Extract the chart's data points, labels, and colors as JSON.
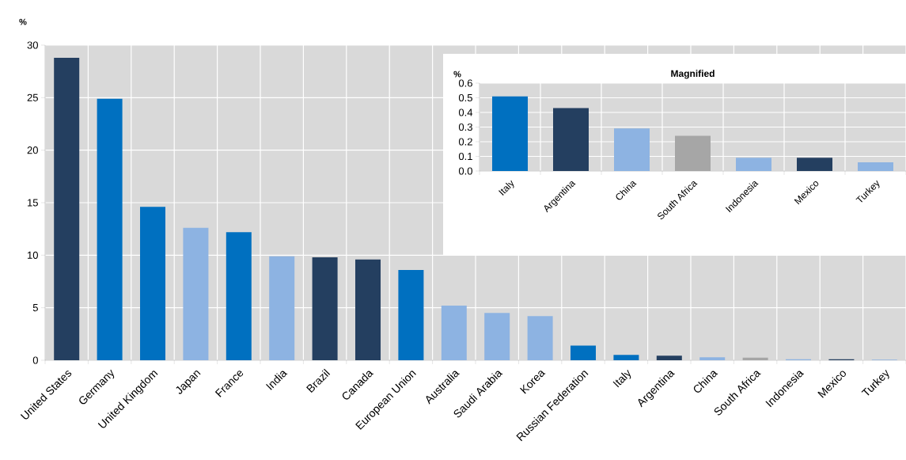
{
  "chart_data": [
    {
      "type": "bar",
      "ylabel": "%",
      "grid": true,
      "ylim": [
        0,
        30
      ],
      "yticks": [
        0,
        5,
        10,
        15,
        20,
        25,
        30
      ],
      "categories": [
        "United States",
        "Germany",
        "United Kingdom",
        "Japan",
        "France",
        "India",
        "Brazil",
        "Canada",
        "European Union",
        "Australia",
        "Saudi Arabia",
        "Korea",
        "Russian Federation",
        "Italy",
        "Argentina",
        "China",
        "South Africa",
        "Indonesia",
        "Mexico",
        "Turkey"
      ],
      "values": [
        28.8,
        24.9,
        14.6,
        12.6,
        12.2,
        9.9,
        9.8,
        9.6,
        8.6,
        5.2,
        4.5,
        4.2,
        1.4,
        0.51,
        0.43,
        0.29,
        0.24,
        0.09,
        0.09,
        0.06
      ],
      "colors": [
        "#243f60",
        "#0070c0",
        "#0070c0",
        "#8db3e2",
        "#0070c0",
        "#8db3e2",
        "#243f60",
        "#243f60",
        "#0070c0",
        "#8db3e2",
        "#8db3e2",
        "#8db3e2",
        "#0070c0",
        "#0070c0",
        "#243f60",
        "#8db3e2",
        "#a6a6a6",
        "#8db3e2",
        "#243f60",
        "#8db3e2"
      ]
    },
    {
      "type": "bar",
      "title": "Magnified",
      "ylabel": "%",
      "grid": true,
      "ylim": [
        0,
        0.6
      ],
      "yticks": [
        {
          "value": 0,
          "label": "0.0"
        },
        {
          "value": 0.1,
          "label": "0.1"
        },
        {
          "value": 0.2,
          "label": "0.2"
        },
        {
          "value": 0.3,
          "label": "0.3"
        },
        {
          "value": 0.4,
          "label": "0.4"
        },
        {
          "value": 0.5,
          "label": "0.5"
        },
        {
          "value": 0.6,
          "label": "0.6"
        }
      ],
      "categories": [
        "Italy",
        "Argentina",
        "China",
        "South Africa",
        "Indonesia",
        "Mexico",
        "Turkey"
      ],
      "values": [
        0.51,
        0.43,
        0.29,
        0.24,
        0.09,
        0.09,
        0.06
      ],
      "colors": [
        "#0070c0",
        "#243f60",
        "#8db3e2",
        "#a6a6a6",
        "#8db3e2",
        "#243f60",
        "#8db3e2"
      ]
    }
  ]
}
